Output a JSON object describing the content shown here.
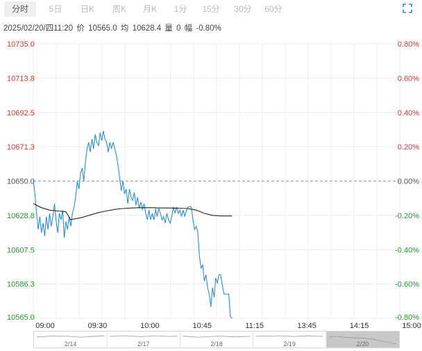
{
  "tabs": [
    {
      "label": "分时",
      "active": true
    },
    {
      "label": "5日",
      "active": false
    },
    {
      "label": "日K",
      "active": false
    },
    {
      "label": "周K",
      "active": false
    },
    {
      "label": "月K",
      "active": false
    },
    {
      "label": "1分",
      "active": false
    },
    {
      "label": "15分",
      "active": false
    },
    {
      "label": "30分",
      "active": false
    },
    {
      "label": "60分",
      "active": false
    }
  ],
  "info": {
    "datetime": "2025/02/20/四11:20",
    "price_label": "价",
    "price_value": "10565.0",
    "avg_label": "均",
    "avg_value": "10628.4",
    "volume_label": "量",
    "volume_value": "0",
    "change_label": "幅",
    "change_value": "-0.80%"
  },
  "colors": {
    "up": "#e8302e",
    "down": "#1c9b2e",
    "flat": "#555555",
    "price_line": "#2a8ed0",
    "avg_line": "#222222",
    "grid": "#ececec"
  },
  "icons": {
    "fullscreen": "expand-icon"
  },
  "chart_data": {
    "type": "line",
    "y_ticks": [
      "10735.0",
      "10713.8",
      "10692.5",
      "10671.3",
      "10650.0",
      "10628.8",
      "10607.5",
      "10586.3",
      "10565.0"
    ],
    "y_tick_values": [
      10735.0,
      10713.8,
      10692.5,
      10671.3,
      10650.0,
      10628.8,
      10607.5,
      10586.3,
      10565.0
    ],
    "pct_ticks": [
      "0.80%",
      "0.60%",
      "0.40%",
      "0.20%",
      "0.00%",
      "-0.20%",
      "-0.40%",
      "-0.60%",
      "-0.80%"
    ],
    "prev_close": 10650.0,
    "ylim": [
      10565.0,
      10735.0
    ],
    "x_ticks": [
      "09:00",
      "09:30",
      "10:00",
      "10:45",
      "11:15",
      "13:45",
      "14:15",
      "15:00"
    ],
    "series": [
      {
        "points": [
          [
            "09:00",
            10650.0
          ],
          [
            "09:01",
            10642.0
          ],
          [
            "09:02",
            10630.0
          ],
          [
            "09:03",
            10620.0
          ],
          [
            "09:04",
            10628.0
          ],
          [
            "09:05",
            10618.0
          ],
          [
            "09:06",
            10624.0
          ],
          [
            "09:07",
            10616.0
          ],
          [
            "09:08",
            10628.0
          ],
          [
            "09:09",
            10620.0
          ],
          [
            "09:10",
            10630.0
          ],
          [
            "09:11",
            10622.0
          ],
          [
            "09:12",
            10628.0
          ],
          [
            "09:13",
            10636.0
          ],
          [
            "09:14",
            10625.0
          ],
          [
            "09:15",
            10618.0
          ],
          [
            "09:16",
            10630.0
          ],
          [
            "09:17",
            10626.0
          ],
          [
            "09:18",
            10632.0
          ],
          [
            "09:19",
            10615.0
          ],
          [
            "09:20",
            10625.0
          ],
          [
            "09:21",
            10620.0
          ],
          [
            "09:22",
            10628.0
          ],
          [
            "09:23",
            10622.0
          ],
          [
            "09:24",
            10630.0
          ],
          [
            "09:25",
            10634.0
          ],
          [
            "09:26",
            10640.0
          ],
          [
            "09:27",
            10650.0
          ],
          [
            "09:28",
            10645.0
          ],
          [
            "09:29",
            10655.0
          ],
          [
            "09:30",
            10658.0
          ],
          [
            "09:31",
            10650.0
          ],
          [
            "09:32",
            10662.0
          ],
          [
            "09:33",
            10670.0
          ],
          [
            "09:34",
            10674.0
          ],
          [
            "09:35",
            10668.0
          ],
          [
            "09:36",
            10676.0
          ],
          [
            "09:37",
            10670.0
          ],
          [
            "09:38",
            10679.0
          ],
          [
            "09:39",
            10674.0
          ],
          [
            "09:40",
            10672.0
          ],
          [
            "09:41",
            10680.0
          ],
          [
            "09:42",
            10675.0
          ],
          [
            "09:43",
            10681.0
          ],
          [
            "09:44",
            10676.0
          ],
          [
            "09:45",
            10674.0
          ],
          [
            "09:46",
            10668.0
          ],
          [
            "09:47",
            10674.0
          ],
          [
            "09:48",
            10670.0
          ],
          [
            "09:49",
            10674.0
          ],
          [
            "09:50",
            10670.0
          ],
          [
            "09:51",
            10666.0
          ],
          [
            "09:52",
            10660.0
          ],
          [
            "09:53",
            10652.0
          ],
          [
            "09:54",
            10644.0
          ],
          [
            "09:55",
            10650.0
          ],
          [
            "09:56",
            10642.0
          ],
          [
            "09:57",
            10645.0
          ],
          [
            "09:58",
            10636.0
          ],
          [
            "09:59",
            10645.0
          ],
          [
            "10:00",
            10640.0
          ],
          [
            "10:01",
            10638.0
          ],
          [
            "10:02",
            10643.0
          ],
          [
            "10:03",
            10635.0
          ],
          [
            "10:04",
            10640.0
          ],
          [
            "10:05",
            10633.0
          ],
          [
            "10:06",
            10637.0
          ],
          [
            "10:07",
            10632.0
          ],
          [
            "10:08",
            10636.0
          ],
          [
            "10:09",
            10630.0
          ],
          [
            "10:10",
            10626.0
          ],
          [
            "10:11",
            10632.0
          ],
          [
            "10:12",
            10626.0
          ],
          [
            "10:13",
            10630.0
          ],
          [
            "10:14",
            10626.0
          ],
          [
            "10:15",
            10631.0
          ],
          [
            "10:30",
            10633.0
          ],
          [
            "10:31",
            10628.0
          ],
          [
            "10:32",
            10633.0
          ],
          [
            "10:33",
            10630.0
          ],
          [
            "10:34",
            10626.0
          ],
          [
            "10:35",
            10628.0
          ],
          [
            "10:36",
            10624.0
          ],
          [
            "10:37",
            10630.0
          ],
          [
            "10:38",
            10626.0
          ],
          [
            "10:39",
            10624.0
          ],
          [
            "10:40",
            10628.0
          ],
          [
            "10:41",
            10634.0
          ],
          [
            "10:42",
            10630.0
          ],
          [
            "10:43",
            10634.0
          ],
          [
            "10:44",
            10630.0
          ],
          [
            "10:45",
            10632.0
          ],
          [
            "10:46",
            10628.0
          ],
          [
            "10:47",
            10632.0
          ],
          [
            "10:48",
            10628.0
          ],
          [
            "10:49",
            10632.0
          ],
          [
            "10:50",
            10634.0
          ],
          [
            "10:51",
            10634.0
          ],
          [
            "10:52",
            10634.0
          ],
          [
            "10:53",
            10626.0
          ],
          [
            "10:54",
            10620.0
          ],
          [
            "10:55",
            10622.0
          ],
          [
            "10:56",
            10618.0
          ],
          [
            "10:57",
            10603.0
          ],
          [
            "10:58",
            10596.0
          ],
          [
            "10:59",
            10598.0
          ],
          [
            "11:00",
            10588.0
          ],
          [
            "11:01",
            10592.0
          ],
          [
            "11:02",
            10584.0
          ],
          [
            "11:03",
            10580.0
          ],
          [
            "11:04",
            10572.0
          ],
          [
            "11:05",
            10584.0
          ],
          [
            "11:06",
            10578.0
          ],
          [
            "11:07",
            10590.0
          ],
          [
            "11:08",
            10587.0
          ],
          [
            "11:09",
            10592.0
          ],
          [
            "11:10",
            10592.0
          ],
          [
            "11:11",
            10586.0
          ],
          [
            "11:12",
            10580.0
          ],
          [
            "11:13",
            10580.0
          ],
          [
            "11:14",
            10580.0
          ],
          [
            "11:15",
            10580.0
          ],
          [
            "11:16",
            10566.0
          ],
          [
            "11:17",
            10565.0
          ]
        ]
      },
      {
        "points": [
          [
            "09:00",
            10636.0
          ],
          [
            "09:05",
            10633.5
          ],
          [
            "09:10",
            10632.0
          ],
          [
            "09:15",
            10631.5
          ],
          [
            "09:20",
            10631.0
          ],
          [
            "09:23",
            10626.0
          ],
          [
            "09:25",
            10626.5
          ],
          [
            "09:30",
            10627.5
          ],
          [
            "09:35",
            10629.0
          ],
          [
            "09:40",
            10630.5
          ],
          [
            "09:45",
            10631.5
          ],
          [
            "09:50",
            10632.5
          ],
          [
            "09:55",
            10633.0
          ],
          [
            "10:00",
            10633.3
          ],
          [
            "10:05",
            10633.5
          ],
          [
            "10:10",
            10633.5
          ],
          [
            "10:15",
            10633.5
          ],
          [
            "10:30",
            10633.4
          ],
          [
            "10:40",
            10633.3
          ],
          [
            "10:50",
            10633.0
          ],
          [
            "10:55",
            10632.0
          ],
          [
            "11:00",
            10630.0
          ],
          [
            "11:05",
            10628.8
          ],
          [
            "11:10",
            10628.4
          ],
          [
            "11:17",
            10628.4
          ]
        ]
      }
    ]
  },
  "overview": {
    "dates": [
      "2/14",
      "2/17",
      "2/18",
      "2/19",
      "2/20"
    ],
    "closes": [
      [
        10648,
        10652,
        10660,
        10655,
        10658,
        10650,
        10646,
        10652,
        10657,
        10661
      ],
      [
        10655,
        10660,
        10663,
        10658,
        10652,
        10656,
        10662,
        10659,
        10654,
        10657
      ],
      [
        10657,
        10652,
        10646,
        10650,
        10655,
        10658,
        10653,
        10649,
        10652,
        10656
      ],
      [
        10656,
        10660,
        10658,
        10662,
        10659,
        10654,
        10657,
        10661,
        10658,
        10655
      ],
      [
        10650,
        10655,
        10645,
        10640,
        10636,
        10632,
        10620,
        10600,
        10585,
        10565
      ]
    ],
    "selected_index": 4
  }
}
